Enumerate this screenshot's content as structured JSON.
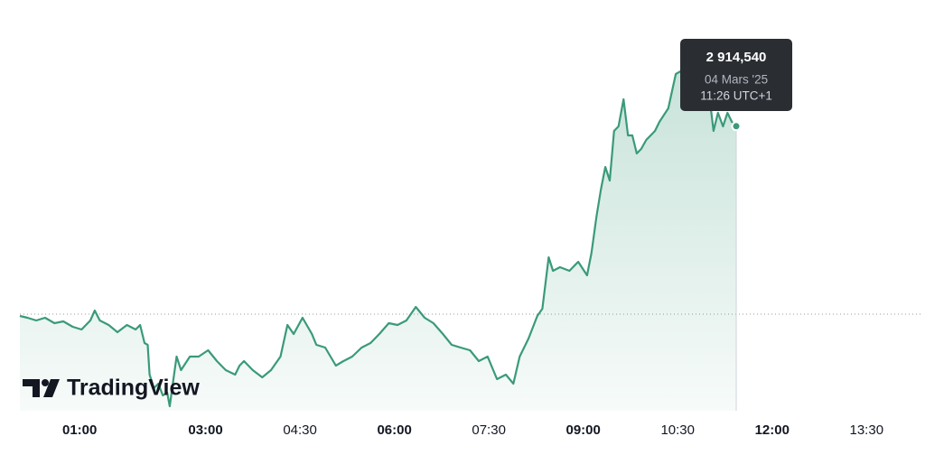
{
  "chart_data": {
    "type": "line",
    "color": "#3a9a7a",
    "x": [
      0.05,
      0.17,
      0.31,
      0.45,
      0.6,
      0.74,
      0.89,
      1.03,
      1.17,
      1.24,
      1.32,
      1.46,
      1.6,
      1.75,
      1.89,
      1.96,
      2.03,
      2.08,
      2.11,
      2.18,
      2.25,
      2.32,
      2.39,
      2.43,
      2.49,
      2.54,
      2.61,
      2.75,
      2.89,
      3.04,
      3.18,
      3.32,
      3.47,
      3.54,
      3.61,
      3.75,
      3.9,
      4.04,
      4.19,
      4.3,
      4.4,
      4.54,
      4.69,
      4.76,
      4.9,
      5.07,
      5.19,
      5.33,
      5.48,
      5.62,
      5.76,
      5.91,
      6.05,
      6.19,
      6.34,
      6.48,
      6.62,
      6.77,
      6.91,
      7.05,
      7.2,
      7.34,
      7.48,
      7.63,
      7.77,
      7.89,
      7.99,
      8.13,
      8.27,
      8.35,
      8.45,
      8.52,
      8.63,
      8.78,
      8.92,
      9.06,
      9.13,
      9.21,
      9.28,
      9.35,
      9.42,
      9.49,
      9.56,
      9.64,
      9.71,
      9.78,
      9.85,
      9.92,
      10.0,
      10.07,
      10.14,
      10.21,
      10.35,
      10.47,
      10.57,
      10.71,
      10.86,
      11.0,
      11.07,
      11.14,
      11.22,
      11.29,
      11.36,
      11.43
    ],
    "values": [
      2872.5,
      2872.1,
      2871.5,
      2872.1,
      2870.9,
      2871.3,
      2870.1,
      2869.5,
      2871.5,
      2873.7,
      2871.5,
      2870.5,
      2868.9,
      2870.5,
      2869.5,
      2870.5,
      2866.5,
      2866.1,
      2859.5,
      2856.5,
      2857.5,
      2854.9,
      2855.5,
      2852.5,
      2858.5,
      2863.5,
      2860.5,
      2863.5,
      2863.5,
      2864.9,
      2862.5,
      2860.5,
      2859.5,
      2861.5,
      2862.5,
      2860.5,
      2858.9,
      2860.5,
      2863.5,
      2870.5,
      2868.5,
      2872.1,
      2868.5,
      2866.1,
      2865.5,
      2861.5,
      2862.5,
      2863.5,
      2865.5,
      2866.5,
      2868.5,
      2870.9,
      2870.5,
      2871.5,
      2874.5,
      2872.1,
      2870.9,
      2868.5,
      2866.1,
      2865.5,
      2864.9,
      2862.5,
      2863.5,
      2858.5,
      2859.5,
      2857.5,
      2863.5,
      2867.5,
      2872.5,
      2874.1,
      2885.5,
      2882.5,
      2883.3,
      2882.5,
      2884.5,
      2881.5,
      2886.5,
      2894.5,
      2900.5,
      2905.5,
      2902.5,
      2913.5,
      2914.5,
      2920.5,
      2912.5,
      2912.5,
      2908.5,
      2909.5,
      2911.5,
      2912.5,
      2913.5,
      2915.5,
      2918.5,
      2926.1,
      2926.9,
      2920.5,
      2926.1,
      2921.5,
      2913.5,
      2917.5,
      2914.5,
      2917.5,
      2915.5,
      2914.54
    ],
    "xlim": [
      0.05,
      14.4
    ],
    "ylim": [
      2851.5,
      2938.5
    ],
    "xticks": [
      {
        "value": 1,
        "label": "01:00"
      },
      {
        "value": 3,
        "label": "03:00"
      },
      {
        "value": 4.5,
        "label": "04:30"
      },
      {
        "value": 6,
        "label": "06:00"
      },
      {
        "value": 7.5,
        "label": "07:30"
      },
      {
        "value": 9,
        "label": "09:00"
      },
      {
        "value": 10.5,
        "label": "10:30"
      },
      {
        "value": 12,
        "label": "12:00"
      },
      {
        "value": 13.5,
        "label": "13:30"
      }
    ],
    "reference_line": 2872.9,
    "tooltip": {
      "value": 2914.54,
      "label": "2 914,540",
      "date": "04 Mars '25",
      "time": "11:26 UTC+1"
    },
    "watermark": "TradingView"
  }
}
